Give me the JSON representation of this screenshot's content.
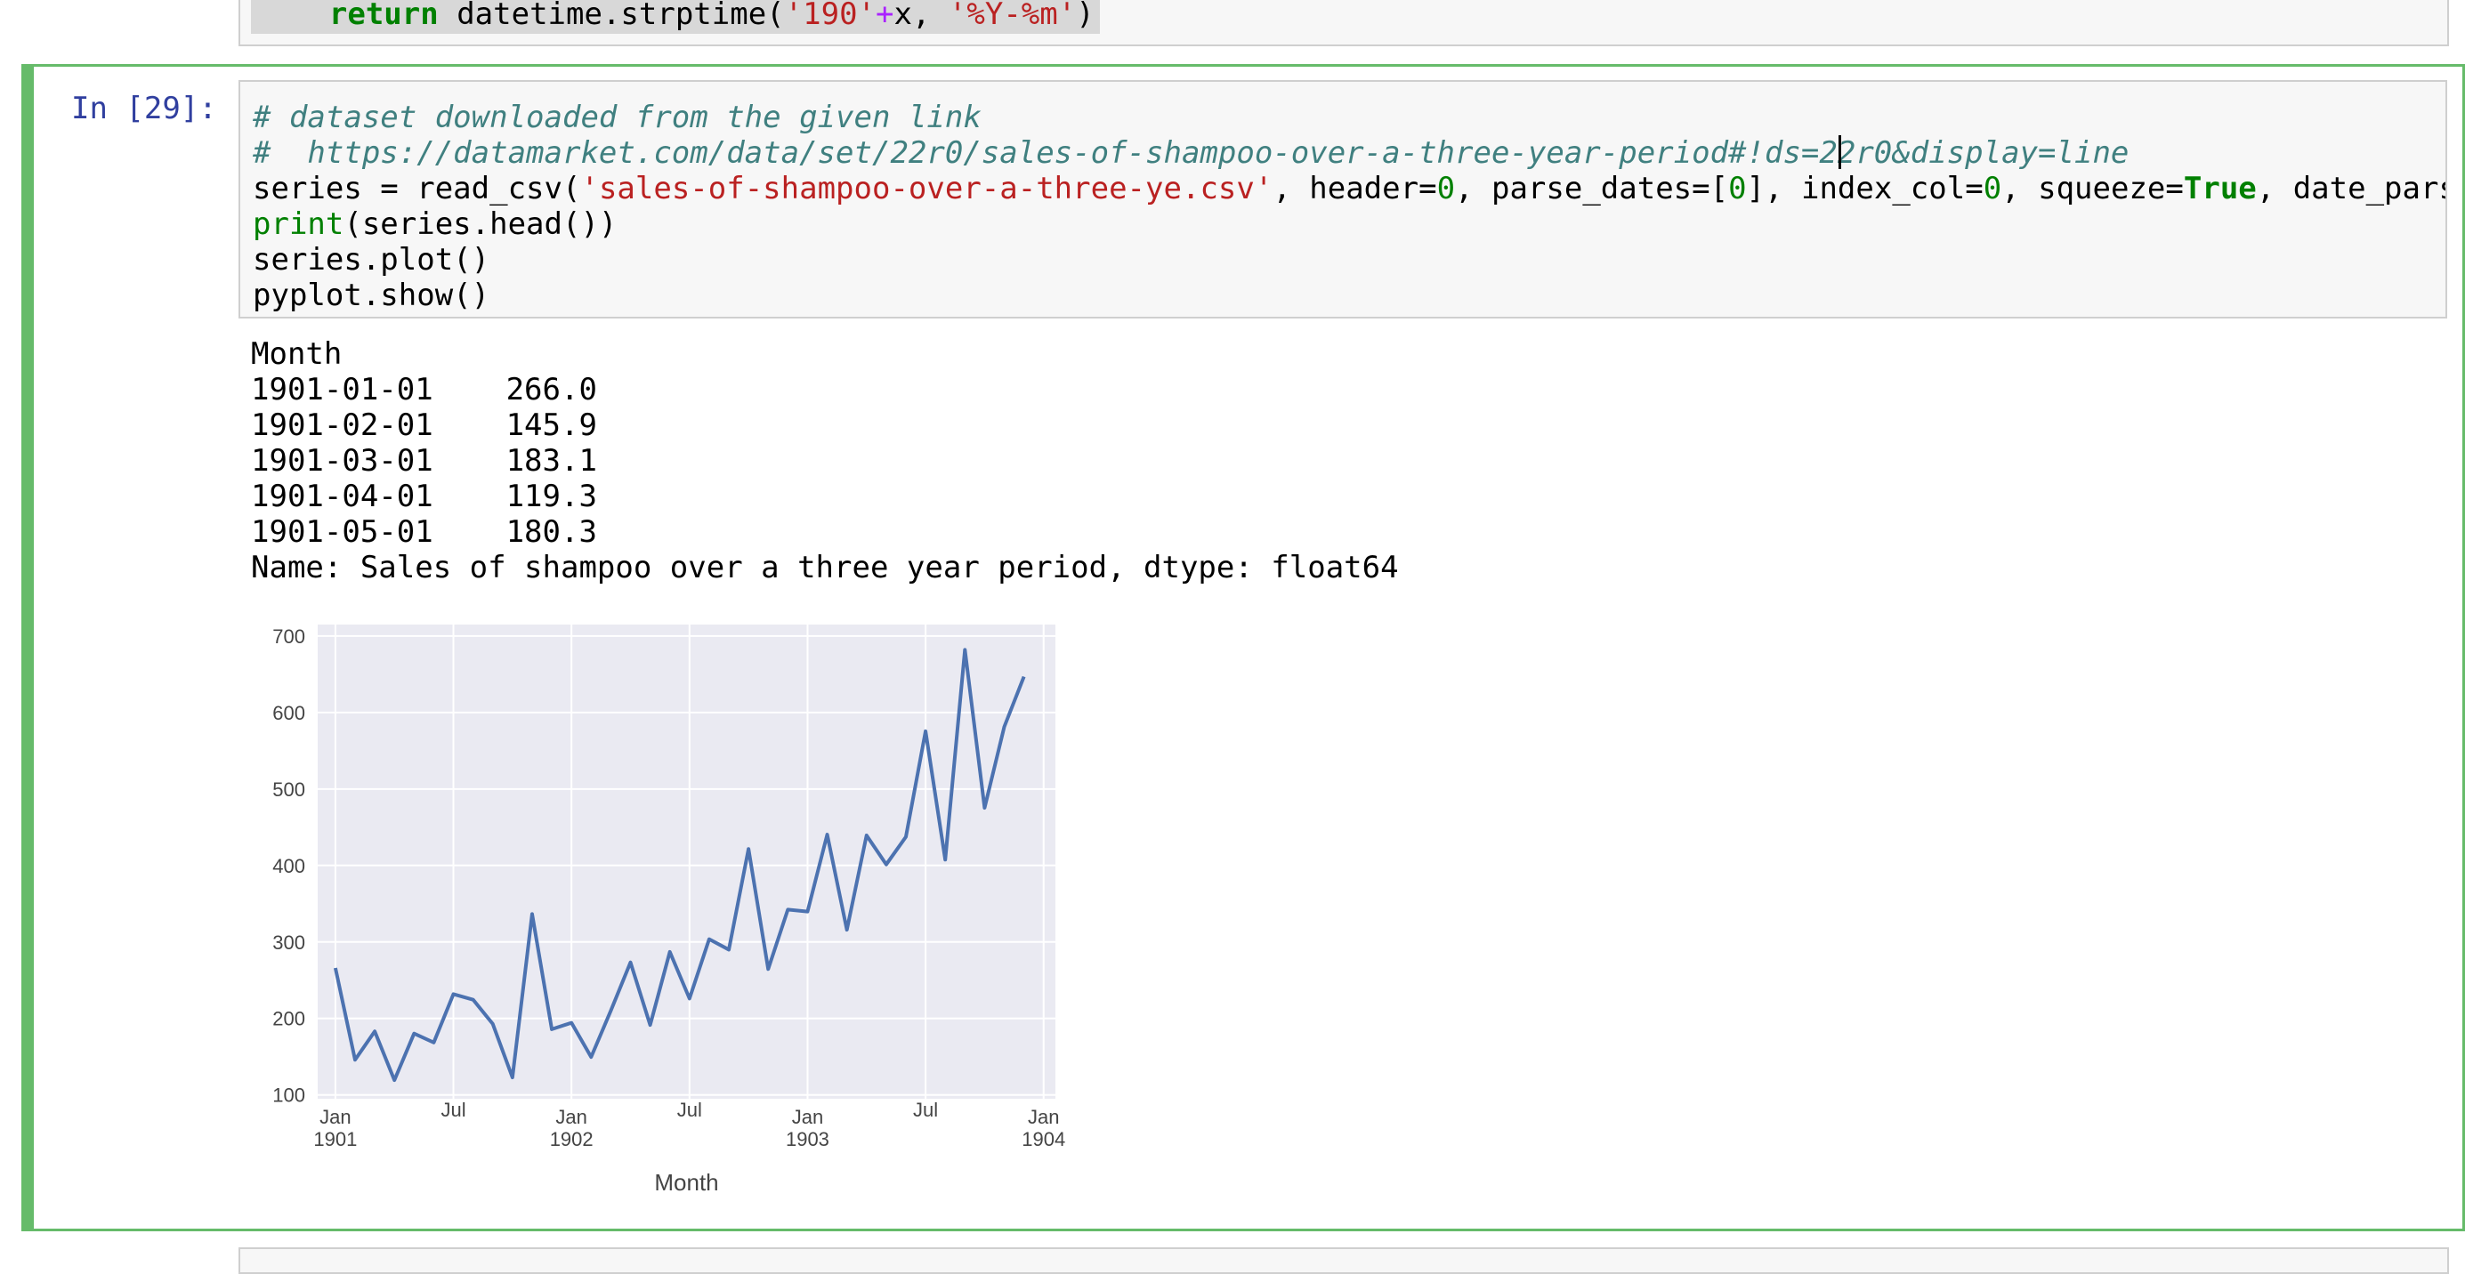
{
  "prev_cell": {
    "code": [
      {
        "t": "    ",
        "c": ""
      },
      {
        "t": "return",
        "c": "cm-keyword"
      },
      {
        "t": " datetime.strptime(",
        "c": ""
      },
      {
        "t": "'190'",
        "c": "cm-string"
      },
      {
        "t": "+",
        "c": "cm-op"
      },
      {
        "t": "x, ",
        "c": ""
      },
      {
        "t": "'%Y-%m'",
        "c": "cm-string"
      },
      {
        "t": ")",
        "c": ""
      }
    ]
  },
  "cell": {
    "prompt": "In [29]:",
    "code_lines": [
      [
        {
          "t": "# dataset downloaded from the given link",
          "c": "cm-comment"
        }
      ],
      [
        {
          "t": "#  https://datamarket.com/data/set/22r0/sales-of-shampoo-over-a-three-year-period#!ds=22r0&display=line",
          "c": "cm-comment"
        }
      ],
      [
        {
          "t": "series = read_csv(",
          "c": ""
        },
        {
          "t": "'sales-of-shampoo-over-a-three-ye.csv'",
          "c": "cm-string"
        },
        {
          "t": ", header=",
          "c": ""
        },
        {
          "t": "0",
          "c": "cm-number"
        },
        {
          "t": ", parse_dates=[",
          "c": ""
        },
        {
          "t": "0",
          "c": "cm-number"
        },
        {
          "t": "], index_col=",
          "c": ""
        },
        {
          "t": "0",
          "c": "cm-number"
        },
        {
          "t": ", squeeze=",
          "c": ""
        },
        {
          "t": "True",
          "c": "cm-keyword"
        },
        {
          "t": ", date_parser=parser)",
          "c": ""
        }
      ],
      [
        {
          "t": "print",
          "c": "cm-builtin"
        },
        {
          "t": "(series.head())",
          "c": ""
        }
      ],
      [
        {
          "t": "series.plot()",
          "c": ""
        }
      ],
      [
        {
          "t": "pyplot.show()",
          "c": ""
        }
      ]
    ]
  },
  "output": {
    "lines": [
      "Month",
      "1901-01-01    266.0",
      "1901-02-01    145.9",
      "1901-03-01    183.1",
      "1901-04-01    119.3",
      "1901-05-01    180.3",
      "Name: Sales of shampoo over a three year period, dtype: float64"
    ]
  },
  "colors": {
    "plot_bg": "#eaeaf2",
    "grid": "#ffffff",
    "line": "#4c72b0",
    "selected_border": "#66bb6a",
    "prompt": "#303f9f"
  },
  "chart_data": {
    "type": "line",
    "xlabel": "Month",
    "ylabel": "",
    "ylim": [
      95,
      715
    ],
    "yticks": [
      100,
      200,
      300,
      400,
      500,
      600,
      700
    ],
    "xticks": [
      {
        "label": "Jan\n1901",
        "month": 0
      },
      {
        "label": "Jul",
        "month": 6
      },
      {
        "label": "Jan\n1902",
        "month": 12
      },
      {
        "label": "Jul",
        "month": 18
      },
      {
        "label": "Jan\n1903",
        "month": 24
      },
      {
        "label": "Jul",
        "month": 30
      },
      {
        "label": "Jan\n1904",
        "month": 36
      }
    ],
    "grid": true,
    "series": [
      {
        "values": [
          266.0,
          145.9,
          183.1,
          119.3,
          180.3,
          168.5,
          231.8,
          224.5,
          192.8,
          122.9,
          336.5,
          185.9,
          194.3,
          149.5,
          210.1,
          273.3,
          191.4,
          287.0,
          226.0,
          303.6,
          289.9,
          421.6,
          264.5,
          342.3,
          339.7,
          440.4,
          315.9,
          439.3,
          401.3,
          437.4,
          575.5,
          407.6,
          682.0,
          475.3,
          581.3,
          646.9
        ]
      }
    ]
  }
}
